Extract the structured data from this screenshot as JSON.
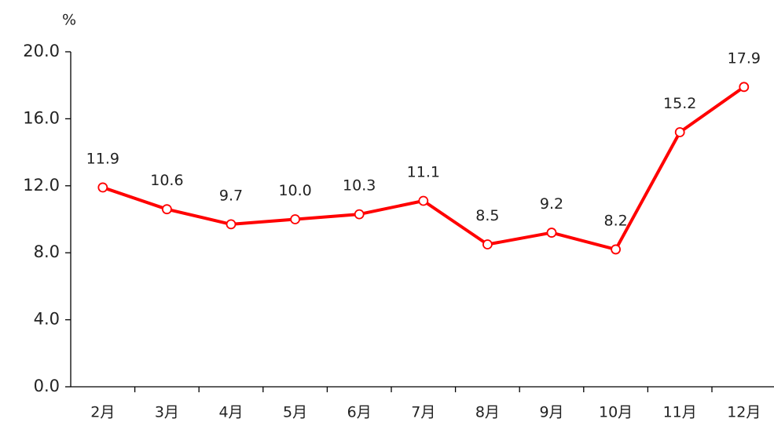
{
  "chart_data": {
    "type": "line",
    "y_unit": "%",
    "categories": [
      "2月",
      "3月",
      "4月",
      "5月",
      "6月",
      "7月",
      "8月",
      "9月",
      "10月",
      "11月",
      "12月"
    ],
    "series": [
      {
        "color": "#ff0000",
        "values": [
          11.9,
          10.6,
          9.7,
          10.0,
          10.3,
          11.1,
          8.5,
          9.2,
          8.2,
          15.2,
          17.9
        ],
        "value_labels": [
          "11.9",
          "10.6",
          "9.7",
          "10.0",
          "10.3",
          "11.1",
          "8.5",
          "9.2",
          "8.2",
          "15.2",
          "17.9"
        ]
      }
    ],
    "ylim": [
      0,
      20
    ],
    "yticks": [
      {
        "value": 0,
        "label": "0.0"
      },
      {
        "value": 4,
        "label": "4.0"
      },
      {
        "value": 8,
        "label": "8.0"
      },
      {
        "value": 12,
        "label": "12.0"
      },
      {
        "value": 16,
        "label": "16.0"
      },
      {
        "value": 20,
        "label": "20.0"
      }
    ],
    "grid": false
  }
}
